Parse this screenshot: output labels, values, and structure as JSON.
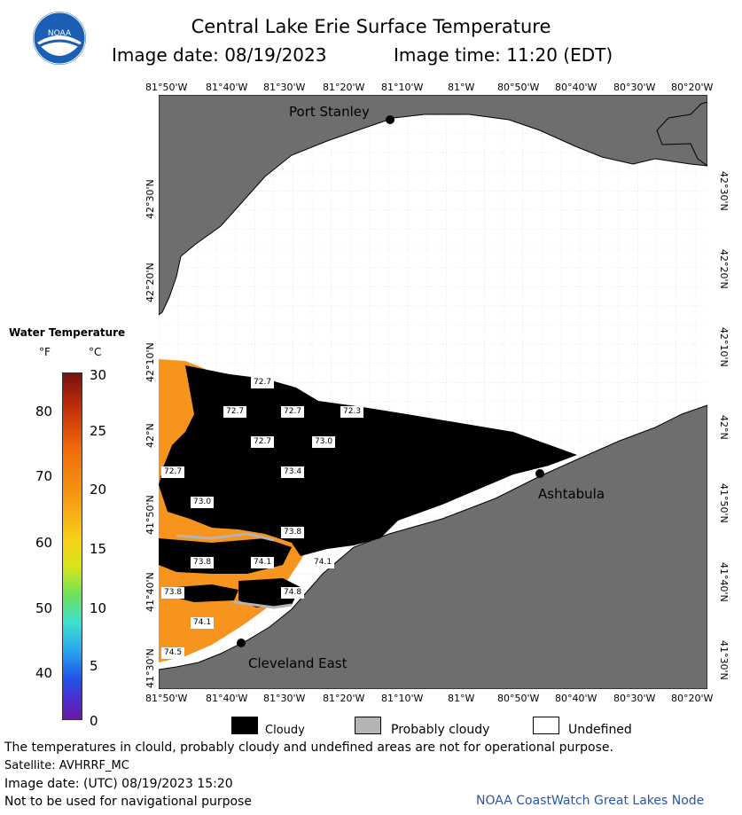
{
  "title": "Central Lake Erie Surface Temperature",
  "image_date": "Image date: 08/19/2023",
  "image_time": "Image time: 11:20 (EDT)",
  "logo_text": "NOAA",
  "lon_ticks": [
    "81°50'W",
    "81°40'W",
    "81°30'W",
    "81°20'W",
    "81°10'W",
    "81°W",
    "80°50'W",
    "80°40'W",
    "80°30'W",
    "80°20'W"
  ],
  "lat_ticks": [
    "42°30'N",
    "42°20'N",
    "42°10'N",
    "42°N",
    "41°50'N",
    "41°40'N",
    "41°30'N"
  ],
  "places": {
    "port_stanley": "Port Stanley",
    "ashtabula": "Ashtabula",
    "cleveland_east": "Cleveland East"
  },
  "temp_labels": [
    "72.7",
    "72.7",
    "72.7",
    "72.3",
    "72.7",
    "73.0",
    "72.7",
    "73.4",
    "73.0",
    "73.8",
    "73.8",
    "74.1",
    "74.1",
    "73.8",
    "74.8",
    "74.1",
    "74.5"
  ],
  "legend": {
    "title": "Water Temperature",
    "unit_f": "°F",
    "unit_c": "°C",
    "f_scale": [
      "80",
      "70",
      "60",
      "50",
      "40"
    ],
    "c_scale": [
      "30",
      "25",
      "20",
      "15",
      "10",
      "5",
      "0"
    ]
  },
  "key": {
    "cloudy": "Cloudy",
    "probably_cloudy": "Probably cloudy",
    "undefined": "Undefined"
  },
  "footer": {
    "disclaimer": "The temperatures in clould, probably cloudy and undefined areas are not for operational purpose.",
    "satellite": "Satellite: AVHRRF_MC",
    "utc_date": "Image date: (UTC) 08/19/2023  15:20",
    "navigation": "Not to be used for navigational purpose",
    "credit": "NOAA CoastWatch Great Lakes Node"
  },
  "colors": {
    "land": "#6e6e6e",
    "cloud": "#000000",
    "water_warm": "#f7941d",
    "undefined": "#ffffff",
    "probably_cloudy": "#b4b4b4"
  }
}
